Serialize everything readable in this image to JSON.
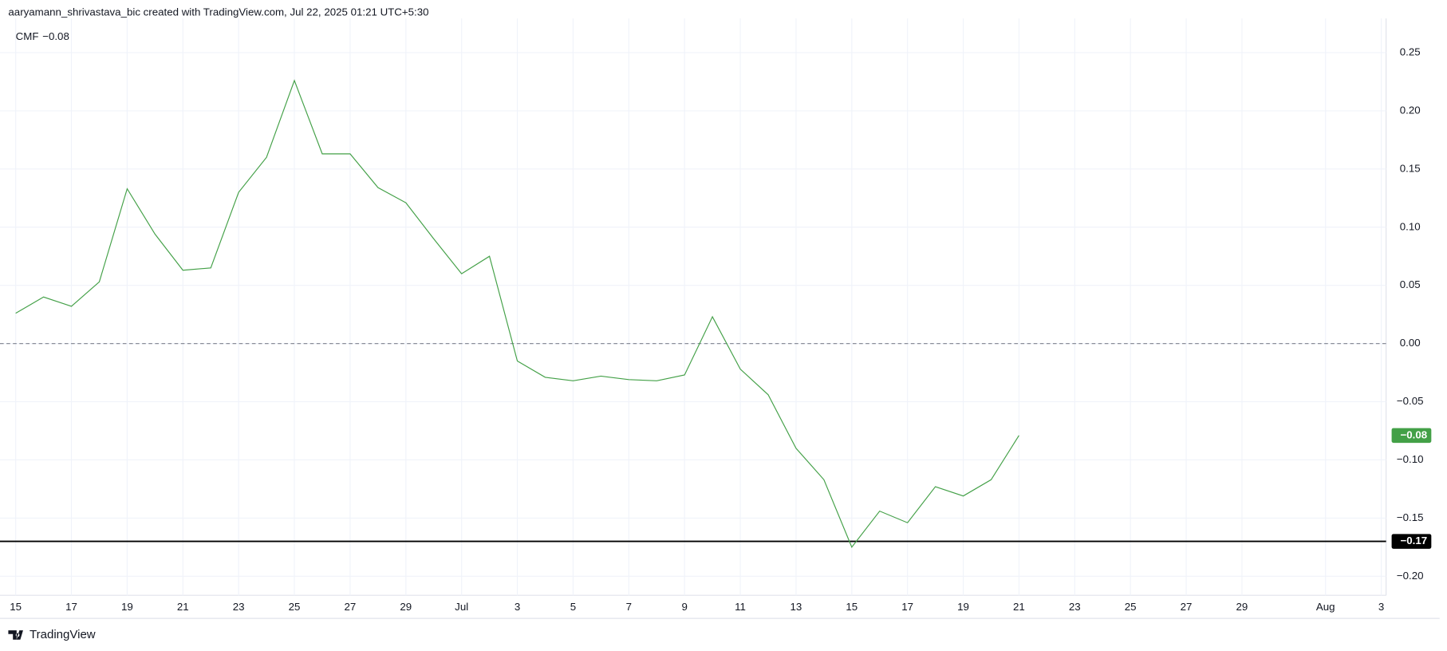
{
  "header": "aaryamann_shrivastava_bic created with TradingView.com, Jul 22, 2025 01:21 UTC+5:30",
  "footer": "TradingView",
  "chart_data": {
    "type": "line",
    "categories": [
      "15",
      null,
      "17",
      null,
      "19",
      null,
      "21",
      null,
      "23",
      null,
      "25",
      null,
      "27",
      null,
      "29",
      null,
      "Jul",
      null,
      "3",
      null,
      "5",
      null,
      "7",
      null,
      "9",
      null,
      "11",
      null,
      "13",
      null,
      "15",
      null,
      "17",
      null,
      "19",
      null,
      "21",
      null,
      "23",
      null,
      "25",
      null,
      "27",
      null,
      "29",
      null,
      null,
      "Aug",
      null,
      "3"
    ],
    "series": [
      {
        "name": "CMF",
        "color": "#43a047",
        "values": [
          0.026,
          0.04,
          0.032,
          0.053,
          0.133,
          0.094,
          0.063,
          0.065,
          0.13,
          0.16,
          0.226,
          0.163,
          0.163,
          0.134,
          0.121,
          0.09,
          0.06,
          0.075,
          -0.015,
          -0.029,
          -0.032,
          -0.028,
          -0.031,
          -0.032,
          -0.027,
          0.023,
          -0.022,
          -0.044,
          -0.09,
          -0.117,
          -0.175,
          -0.144,
          -0.154,
          -0.123,
          -0.131,
          -0.117,
          -0.079,
          null,
          null,
          null,
          null,
          null,
          null,
          null,
          null,
          null,
          null,
          null,
          null,
          null
        ],
        "last_label": "−0.08"
      }
    ],
    "ylim": [
      -0.214,
      0.273
    ],
    "yticks": [
      {
        "value": -0.2,
        "label": "−0.20"
      },
      {
        "value": -0.15,
        "label": "−0.15"
      },
      {
        "value": -0.1,
        "label": "−0.10"
      },
      {
        "value": -0.05,
        "label": "−0.05"
      },
      {
        "value": 0,
        "label": "0.00"
      },
      0.05,
      {
        "value": 0.1,
        "label": "0.10"
      },
      0.15,
      {
        "value": 0.2,
        "label": "0.20"
      },
      0.25
    ],
    "zero_line": true,
    "hlines": [
      {
        "value": -0.17,
        "label": "−0.17",
        "color": "#000000"
      }
    ],
    "grid": true
  }
}
